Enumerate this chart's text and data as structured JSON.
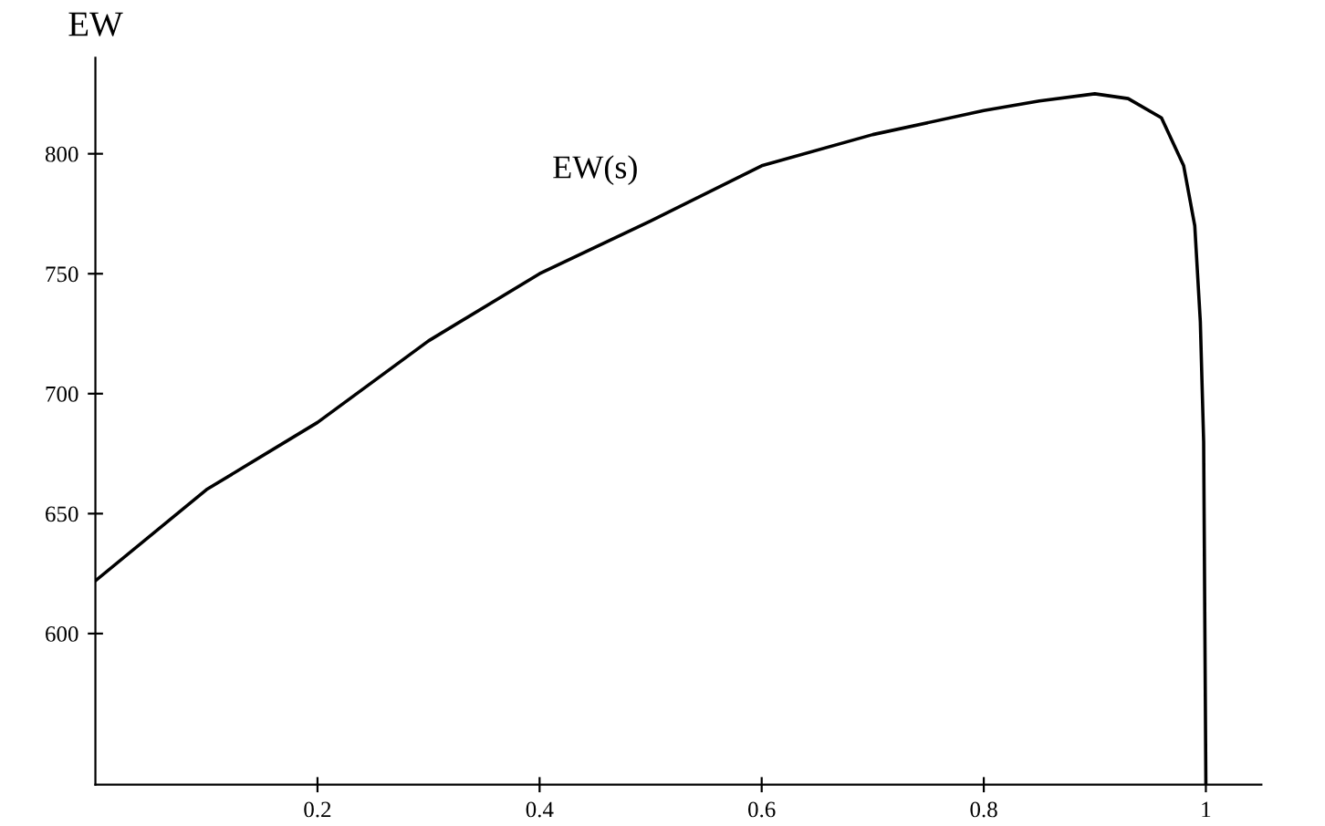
{
  "chart_data": {
    "type": "line",
    "ylabel": "EW",
    "x": [
      0,
      0.1,
      0.2,
      0.3,
      0.4,
      0.5,
      0.6,
      0.7,
      0.8,
      0.85,
      0.9,
      0.93,
      0.96,
      0.98,
      0.99,
      0.995,
      0.998,
      1.0
    ],
    "series": [
      {
        "name": "EW(s)",
        "color": "#000000",
        "values": [
          622,
          660,
          688,
          722,
          750,
          772,
          795,
          808,
          818,
          822,
          825,
          823,
          815,
          795,
          770,
          730,
          680,
          537
        ]
      }
    ],
    "xlim": [
      0,
      1.05
    ],
    "ylim": [
      537,
      840
    ],
    "xticks": [
      0.2,
      0.4,
      0.6,
      0.8,
      1
    ],
    "yticks": [
      600,
      650,
      700,
      750,
      800
    ],
    "grid": false,
    "marker": "none",
    "line_style": "solid"
  }
}
